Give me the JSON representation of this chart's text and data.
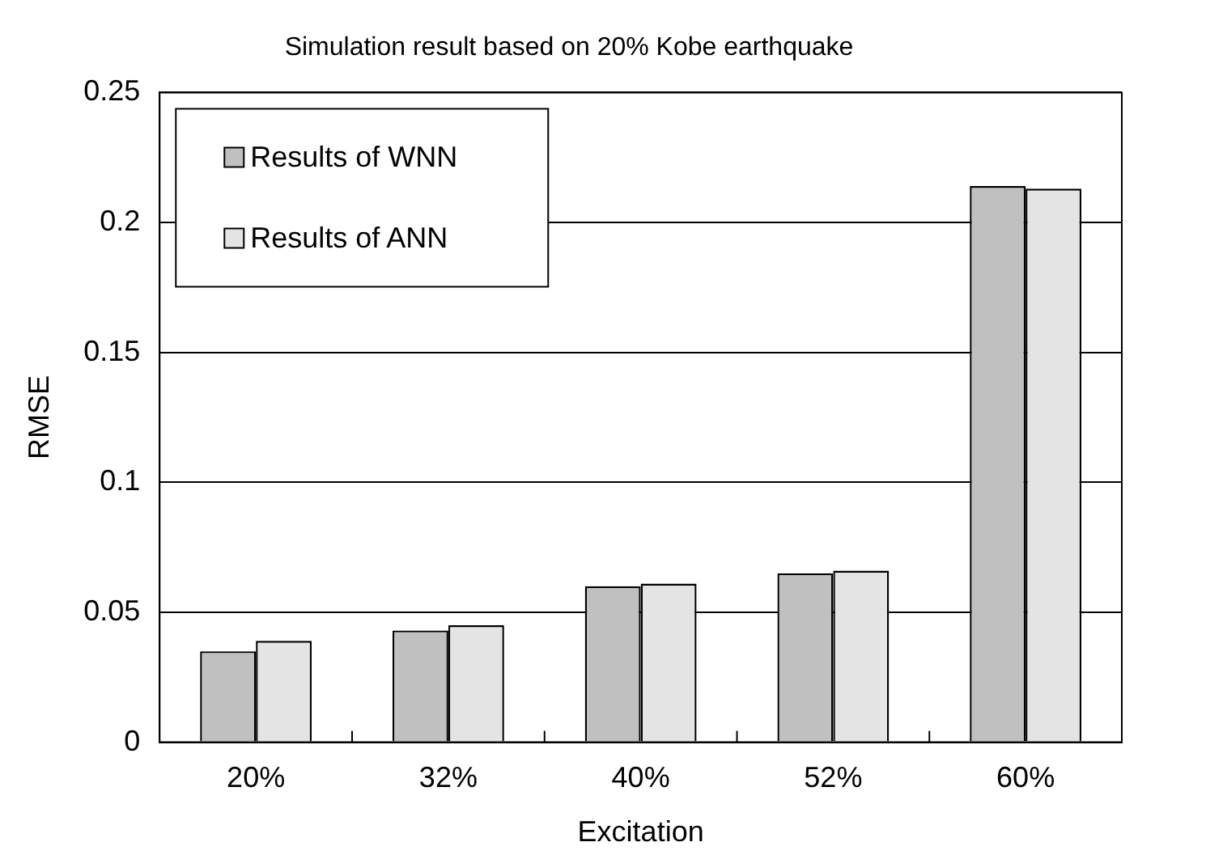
{
  "chart_data": {
    "type": "bar",
    "title": "Simulation result based on 20% Kobe earthquake",
    "xlabel": "Excitation",
    "ylabel": "RMSE",
    "categories": [
      "20%",
      "32%",
      "40%",
      "52%",
      "60%"
    ],
    "series": [
      {
        "name": "Results of WNN",
        "color": "#c0c0c0",
        "values": [
          0.035,
          0.043,
          0.06,
          0.065,
          0.214
        ]
      },
      {
        "name": "Results of ANN",
        "color": "#e4e4e4",
        "values": [
          0.039,
          0.045,
          0.061,
          0.066,
          0.213
        ]
      }
    ],
    "ylim": [
      0,
      0.25
    ],
    "yticks": [
      0,
      0.05,
      0.1,
      0.15,
      0.2,
      0.25
    ],
    "grid": "y",
    "legend": "top left"
  }
}
